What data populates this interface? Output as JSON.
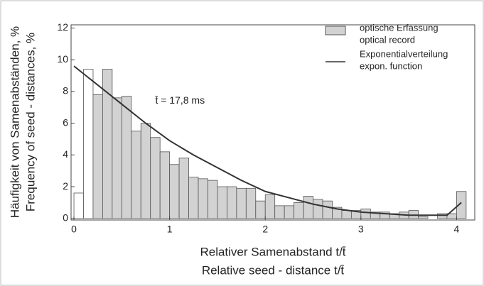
{
  "chart_data": {
    "type": "histogram",
    "annotation": "t̄ = 17,8 ms",
    "ylabel": [
      "Häufigkeit von Samenabständen, %",
      "Frequency of seed - distances, %"
    ],
    "xlabel": [
      "Relativer Samenabstand t/t̄",
      "Relative seed - distance  t/t̄"
    ],
    "xlim": [
      -0.03,
      4.19
    ],
    "ylim": [
      -0.1,
      12.2
    ],
    "xticks": [
      0,
      1,
      2,
      3,
      4
    ],
    "yticks": [
      0,
      2,
      4,
      6,
      8,
      10,
      12
    ],
    "legend": "upper right",
    "series": [
      {
        "type": "histogram",
        "name": [
          "optische Erfassung",
          "optical record"
        ],
        "color": "#d2d2d2",
        "bins": [
          0,
          0.1,
          0.2,
          0.3,
          0.4,
          0.5,
          0.6,
          0.7,
          0.8,
          0.9,
          1.0,
          1.1,
          1.2,
          1.3,
          1.4,
          1.5,
          1.6,
          1.7,
          1.8,
          1.9,
          2.0,
          2.1,
          2.2,
          2.3,
          2.4,
          2.5,
          2.6,
          2.7,
          2.8,
          2.9,
          3.0,
          3.1,
          3.2,
          3.3,
          3.4,
          3.5,
          3.6,
          3.7,
          3.8,
          3.9,
          4.0,
          4.1
        ],
        "values": [
          1.6,
          9.4,
          7.8,
          9.4,
          7.6,
          7.7,
          5.5,
          6.0,
          5.1,
          4.2,
          3.4,
          3.8,
          2.6,
          2.5,
          2.4,
          2.0,
          2.0,
          1.9,
          1.9,
          1.1,
          1.5,
          0.8,
          0.8,
          1.0,
          1.4,
          1.2,
          1.1,
          0.7,
          0.5,
          0.5,
          0.6,
          0.4,
          0.4,
          0.3,
          0.4,
          0.5,
          0.1,
          0,
          0.3,
          0.3,
          1.7
        ],
        "colors": [
          "#ffffff",
          "#ffffff",
          "#d2d2d2",
          "#d2d2d2",
          "#d2d2d2",
          "#d2d2d2",
          "#d2d2d2",
          "#d2d2d2",
          "#d2d2d2",
          "#d2d2d2",
          "#d2d2d2",
          "#d2d2d2",
          "#d2d2d2",
          "#d2d2d2",
          "#d2d2d2",
          "#d2d2d2",
          "#d2d2d2",
          "#d2d2d2",
          "#d2d2d2",
          "#d2d2d2",
          "#d2d2d2",
          "#d2d2d2",
          "#d2d2d2",
          "#d2d2d2",
          "#d2d2d2",
          "#d2d2d2",
          "#d2d2d2",
          "#d2d2d2",
          "#d2d2d2",
          "#d2d2d2",
          "#d2d2d2",
          "#d2d2d2",
          "#d2d2d2",
          "#d2d2d2",
          "#d2d2d2",
          "#d2d2d2",
          "#d2d2d2",
          "#d2d2d2",
          "#d2d2d2",
          "#d2d2d2",
          "#d2d2d2"
        ]
      },
      {
        "type": "line",
        "name": [
          "Exponentialverteilung",
          "expon. function"
        ],
        "color": "#333333",
        "x": [
          0,
          0.25,
          0.5,
          0.75,
          1.0,
          1.25,
          1.5,
          1.75,
          2.0,
          2.25,
          2.5,
          2.75,
          3.0,
          3.5,
          3.9,
          4.05
        ],
        "values": [
          9.6,
          8.4,
          7.2,
          6.0,
          4.9,
          4.0,
          3.2,
          2.4,
          1.7,
          1.3,
          0.9,
          0.6,
          0.4,
          0.2,
          0.2,
          1.0
        ]
      }
    ]
  }
}
